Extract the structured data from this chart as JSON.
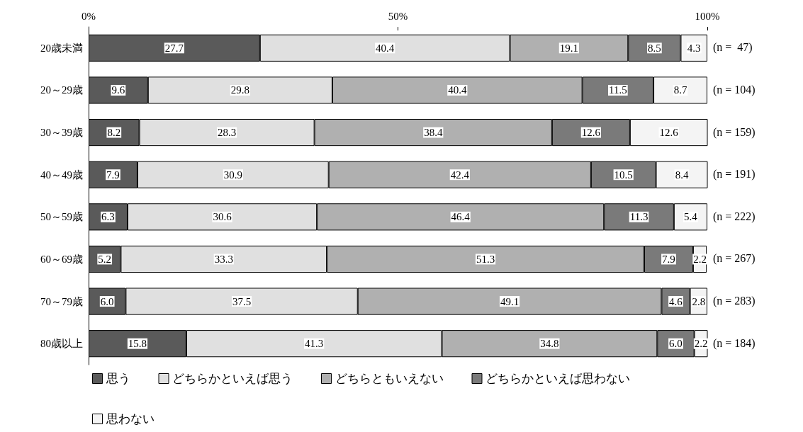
{
  "chart_data": {
    "type": "bar",
    "orientation": "horizontal",
    "stacked": true,
    "categories": [
      "20歳未満",
      "20～29歳",
      "30～39歳",
      "40～49歳",
      "50～59歳",
      "60～69歳",
      "70～79歳",
      "80歳以上"
    ],
    "series": [
      {
        "name": "思う",
        "color": "#5a5a5a",
        "values": [
          27.7,
          9.6,
          8.2,
          7.9,
          6.3,
          5.2,
          6.0,
          15.8
        ],
        "value_labels": [
          "27.7",
          "9.6",
          "8.2",
          "7.9",
          "6.3",
          "5.2",
          "6.0",
          "15.8"
        ]
      },
      {
        "name": "どちらかといえば思う",
        "color": "#e0e0e0",
        "values": [
          40.4,
          29.8,
          28.3,
          30.9,
          30.6,
          33.3,
          37.5,
          41.3
        ],
        "value_labels": [
          "40.4",
          "29.8",
          "28.3",
          "30.9",
          "30.6",
          "33.3",
          "37.5",
          "41.3"
        ]
      },
      {
        "name": "どちらともいえない",
        "color": "#b0b0b0",
        "values": [
          19.1,
          40.4,
          38.4,
          42.4,
          46.4,
          51.3,
          49.1,
          34.8
        ],
        "value_labels": [
          "19.1",
          "40.4",
          "38.4",
          "42.4",
          "46.4",
          "51.3",
          "49.1",
          "34.8"
        ]
      },
      {
        "name": "どちらかといえば思わない",
        "color": "#7a7a7a",
        "values": [
          8.5,
          11.5,
          12.6,
          10.5,
          11.3,
          7.9,
          4.6,
          6.0
        ],
        "value_labels": [
          "8.5",
          "11.5",
          "12.6",
          "10.5",
          "11.3",
          "7.9",
          "4.6",
          "6.0"
        ]
      },
      {
        "name": "思わない",
        "color": "#f4f4f4",
        "values": [
          4.3,
          8.7,
          12.6,
          8.4,
          5.4,
          2.2,
          2.8,
          2.2
        ],
        "value_labels": [
          "4.3",
          "8.7",
          "12.6",
          "8.4",
          "5.4",
          "2.2",
          "2.8",
          "2.2"
        ]
      }
    ],
    "xlim": [
      0,
      100
    ],
    "xticks": [
      {
        "value": 0,
        "label": "0%"
      },
      {
        "value": 50,
        "label": "50%"
      },
      {
        "value": 100,
        "label": "100%"
      }
    ],
    "grid": false,
    "legend": "bottom",
    "annotations": [
      "(n =  47)",
      "(n = 104)",
      "(n = 159)",
      "(n = 191)",
      "(n = 222)",
      "(n = 267)",
      "(n = 283)",
      "(n = 184)"
    ]
  }
}
